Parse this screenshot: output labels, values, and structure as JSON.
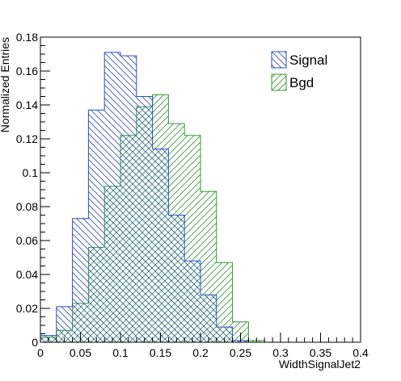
{
  "chart_data": {
    "type": "histogram",
    "title": "",
    "xlabel": "WidthSignalJet2",
    "ylabel": "Normalized Entries",
    "xlim": [
      0,
      0.4
    ],
    "ylim": [
      0,
      0.18
    ],
    "bin_edges": [
      0,
      0.02,
      0.04,
      0.06,
      0.08,
      0.1,
      0.12,
      0.14,
      0.16,
      0.18,
      0.2,
      0.22,
      0.24,
      0.26,
      0.28,
      0.3,
      0.32,
      0.34,
      0.36,
      0.38,
      0.4
    ],
    "x_ticks": [
      {
        "value": 0,
        "label": "0"
      },
      {
        "value": 0.05,
        "label": "0.05"
      },
      {
        "value": 0.1,
        "label": "0.1"
      },
      {
        "value": 0.15,
        "label": "0.15"
      },
      {
        "value": 0.2,
        "label": "0.2"
      },
      {
        "value": 0.25,
        "label": "0.25"
      },
      {
        "value": 0.3,
        "label": "0.3"
      },
      {
        "value": 0.35,
        "label": "0.35"
      },
      {
        "value": 0.4,
        "label": "0.4"
      }
    ],
    "y_ticks": [
      {
        "value": 0,
        "label": "0"
      },
      {
        "value": 0.02,
        "label": "0.02"
      },
      {
        "value": 0.04,
        "label": "0.04"
      },
      {
        "value": 0.06,
        "label": "0.06"
      },
      {
        "value": 0.08,
        "label": "0.08"
      },
      {
        "value": 0.1,
        "label": "0.1"
      },
      {
        "value": 0.12,
        "label": "0.12"
      },
      {
        "value": 0.14,
        "label": "0.14"
      },
      {
        "value": 0.16,
        "label": "0.16"
      },
      {
        "value": 0.18,
        "label": "0.18"
      }
    ],
    "series": [
      {
        "name": "Signal",
        "color": "#2b4ecb",
        "values": [
          0.004,
          0.021,
          0.073,
          0.137,
          0.171,
          0.169,
          0.145,
          0.114,
          0.075,
          0.048,
          0.028,
          0.009,
          0.001,
          0,
          0,
          0,
          0,
          0,
          0,
          0
        ]
      },
      {
        "name": "Bgd",
        "color": "#2e9a2e",
        "values": [
          0.003,
          0.007,
          0.023,
          0.056,
          0.092,
          0.122,
          0.139,
          0.146,
          0.129,
          0.122,
          0.089,
          0.047,
          0.012,
          0.001,
          0,
          0,
          0,
          0,
          0,
          0
        ]
      }
    ],
    "grid": false,
    "legend_position": "top-right"
  }
}
